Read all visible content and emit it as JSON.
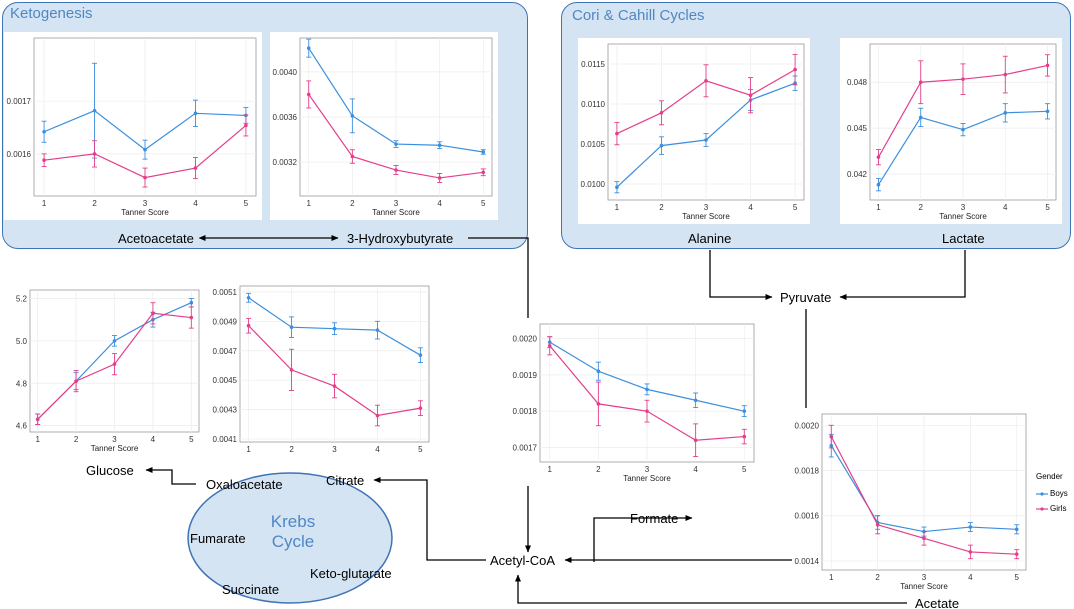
{
  "panels": {
    "ketogenesis": "Ketogenesis",
    "cori": "Cori & Cahill Cycles"
  },
  "nodes": {
    "acetoacetate": "Acetoacetate",
    "hydroxybutyrate": "3-Hydroxybutyrate",
    "alanine": "Alanine",
    "lactate": "Lactate",
    "pyruvate": "Pyruvate",
    "glucose": "Glucose",
    "oxaloacetate": "Oxaloacetate",
    "citrate": "Citrate",
    "fumarate": "Fumarate",
    "succinate": "Succinate",
    "ketoglutarate": "Keto-glutarate",
    "acetylcoa": "Acetyl-CoA",
    "formate": "Formate",
    "acetate": "Acetate",
    "krebs": "Krebs Cycle"
  },
  "legend": {
    "title": "Gender",
    "boys": "Boys",
    "girls": "Girls"
  },
  "colors": {
    "boys": "#3c8fde",
    "girls": "#e43e8a",
    "panel_bg": "#d5e4f3",
    "panel_border": "#3f73b6",
    "title": "#4f87c5"
  },
  "chart_data": [
    {
      "id": "acetoacetate",
      "type": "line",
      "xlabel": "Tanner Score",
      "ylabel": "",
      "x": [
        1,
        2,
        3,
        4,
        5
      ],
      "ylim": [
        0.00152,
        0.00182
      ],
      "yticks": [
        0.0016,
        0.0017
      ],
      "ytick_labels": [
        "0.0016",
        "0.0017"
      ],
      "series": [
        {
          "name": "Boys",
          "values": [
            0.001642,
            0.001682,
            0.001608,
            0.001677,
            0.001673
          ],
          "err": [
            2e-05,
            9e-05,
            1.8e-05,
            2.5e-05,
            1.5e-05
          ]
        },
        {
          "name": "Girls",
          "values": [
            0.001588,
            0.0016,
            0.001555,
            0.001573,
            0.001654
          ],
          "err": [
            1.2e-05,
            2.5e-05,
            1.8e-05,
            2e-05,
            2e-05
          ]
        }
      ]
    },
    {
      "id": "hydroxybutyrate",
      "type": "line",
      "xlabel": "Tanner Score",
      "ylabel": "",
      "x": [
        1,
        2,
        3,
        4,
        5
      ],
      "ylim": [
        0.0029,
        0.0043
      ],
      "yticks": [
        0.0032,
        0.0036,
        0.004
      ],
      "ytick_labels": [
        "0.0032",
        "0.0036",
        "0.0040"
      ],
      "series": [
        {
          "name": "Boys",
          "values": [
            0.00421,
            0.00361,
            0.00336,
            0.00335,
            0.00329
          ],
          "err": [
            8e-05,
            0.00015,
            3e-05,
            3e-05,
            2e-05
          ]
        },
        {
          "name": "Girls",
          "values": [
            0.0038,
            0.00325,
            0.00313,
            0.00306,
            0.00311
          ],
          "err": [
            0.00012,
            6e-05,
            4e-05,
            4e-05,
            3e-05
          ]
        }
      ]
    },
    {
      "id": "alanine",
      "type": "line",
      "xlabel": "Tanner Score",
      "ylabel": "",
      "x": [
        1,
        2,
        3,
        4,
        5
      ],
      "ylim": [
        0.0098,
        0.01175
      ],
      "yticks": [
        0.01,
        0.0105,
        0.011,
        0.0115
      ],
      "ytick_labels": [
        "0.0100",
        "0.0105",
        "0.0110",
        "0.0115"
      ],
      "series": [
        {
          "name": "Boys",
          "values": [
            0.00996,
            0.01048,
            0.01055,
            0.01105,
            0.01126
          ],
          "err": [
            7e-05,
            0.00011,
            8e-05,
            0.00013,
            9e-05
          ]
        },
        {
          "name": "Girls",
          "values": [
            0.01063,
            0.01089,
            0.01129,
            0.01111,
            0.01143
          ],
          "err": [
            0.00014,
            0.00015,
            0.0002,
            0.00022,
            0.00019
          ]
        }
      ]
    },
    {
      "id": "lactate",
      "type": "line",
      "xlabel": "Tanner Score",
      "ylabel": "",
      "x": [
        1,
        2,
        3,
        4,
        5
      ],
      "ylim": [
        0.0403,
        0.0505
      ],
      "yticks": [
        0.042,
        0.045,
        0.048
      ],
      "ytick_labels": [
        "0.042",
        "0.045",
        "0.048"
      ],
      "series": [
        {
          "name": "Boys",
          "values": [
            0.0413,
            0.0457,
            0.0449,
            0.046,
            0.0461
          ],
          "err": [
            0.0004,
            0.0006,
            0.0004,
            0.0006,
            0.0005
          ]
        },
        {
          "name": "Girls",
          "values": [
            0.0431,
            0.048,
            0.0482,
            0.0485,
            0.0491
          ],
          "err": [
            0.0005,
            0.0014,
            0.001,
            0.0012,
            0.0007
          ]
        }
      ]
    },
    {
      "id": "glucose",
      "type": "line",
      "xlabel": "Tanner Score",
      "ylabel": "",
      "x": [
        1,
        2,
        3,
        4,
        5
      ],
      "ylim": [
        4.57,
        5.24
      ],
      "yticks": [
        4.6,
        4.8,
        5.0,
        5.2
      ],
      "ytick_labels": [
        "4.6",
        "4.8",
        "5.0",
        "5.2"
      ],
      "series": [
        {
          "name": "Boys",
          "values": [
            4.63,
            4.81,
            5.0,
            5.1,
            5.18
          ],
          "err": [
            0.025,
            0.04,
            0.025,
            0.035,
            0.02
          ]
        },
        {
          "name": "Girls",
          "values": [
            4.63,
            4.81,
            4.89,
            5.13,
            5.11
          ],
          "err": [
            0.025,
            0.05,
            0.05,
            0.05,
            0.05
          ]
        }
      ]
    },
    {
      "id": "citrate",
      "type": "line",
      "xlabel": "",
      "ylabel": "",
      "x": [
        1,
        2,
        3,
        4,
        5
      ],
      "ylim": [
        0.00408,
        0.00514
      ],
      "yticks": [
        0.0041,
        0.0043,
        0.0045,
        0.0047,
        0.0049,
        0.0051
      ],
      "ytick_labels": [
        "0.0041",
        "0.0043",
        "0.0045",
        "0.0047",
        "0.0049",
        "0.0051"
      ],
      "series": [
        {
          "name": "Boys",
          "values": [
            0.00506,
            0.00486,
            0.00485,
            0.00484,
            0.00467
          ],
          "err": [
            3e-05,
            7e-05,
            4e-05,
            6e-05,
            5e-05
          ]
        },
        {
          "name": "Girls",
          "values": [
            0.00487,
            0.00457,
            0.00446,
            0.00426,
            0.00431
          ],
          "err": [
            5e-05,
            0.00014,
            8e-05,
            7e-05,
            5e-05
          ]
        }
      ]
    },
    {
      "id": "formate",
      "type": "line",
      "xlabel": "Tanner Score",
      "ylabel": "",
      "x": [
        1,
        2,
        3,
        4,
        5
      ],
      "ylim": [
        0.00166,
        0.00204
      ],
      "yticks": [
        0.0017,
        0.0018,
        0.0019,
        0.002
      ],
      "ytick_labels": [
        "0.0017",
        "0.0018",
        "0.0019",
        "0.0020"
      ],
      "series": [
        {
          "name": "Boys",
          "values": [
            0.00199,
            0.00191,
            0.00186,
            0.00183,
            0.0018
          ],
          "err": [
            1.5e-05,
            2.5e-05,
            1.5e-05,
            2e-05,
            1.5e-05
          ]
        },
        {
          "name": "Girls",
          "values": [
            0.00198,
            0.00182,
            0.0018,
            0.00172,
            0.00173
          ],
          "err": [
            2.5e-05,
            6e-05,
            3e-05,
            4.5e-05,
            2e-05
          ]
        }
      ]
    },
    {
      "id": "acetate",
      "type": "line",
      "xlabel": "Tanner Score",
      "ylabel": "",
      "x": [
        1,
        2,
        3,
        4,
        5
      ],
      "ylim": [
        0.00136,
        0.00205
      ],
      "yticks": [
        0.0014,
        0.0016,
        0.0018,
        0.002
      ],
      "ytick_labels": [
        "0.0014",
        "0.0016",
        "0.0018",
        "0.0020"
      ],
      "series": [
        {
          "name": "Boys",
          "values": [
            0.00191,
            0.00157,
            0.00153,
            0.00155,
            0.00154
          ],
          "err": [
            5e-05,
            3e-05,
            2e-05,
            2e-05,
            2e-05
          ]
        },
        {
          "name": "Girls",
          "values": [
            0.00195,
            0.00156,
            0.0015,
            0.00144,
            0.00143
          ],
          "err": [
            5e-05,
            4e-05,
            3e-05,
            3e-05,
            2e-05
          ]
        }
      ]
    }
  ]
}
